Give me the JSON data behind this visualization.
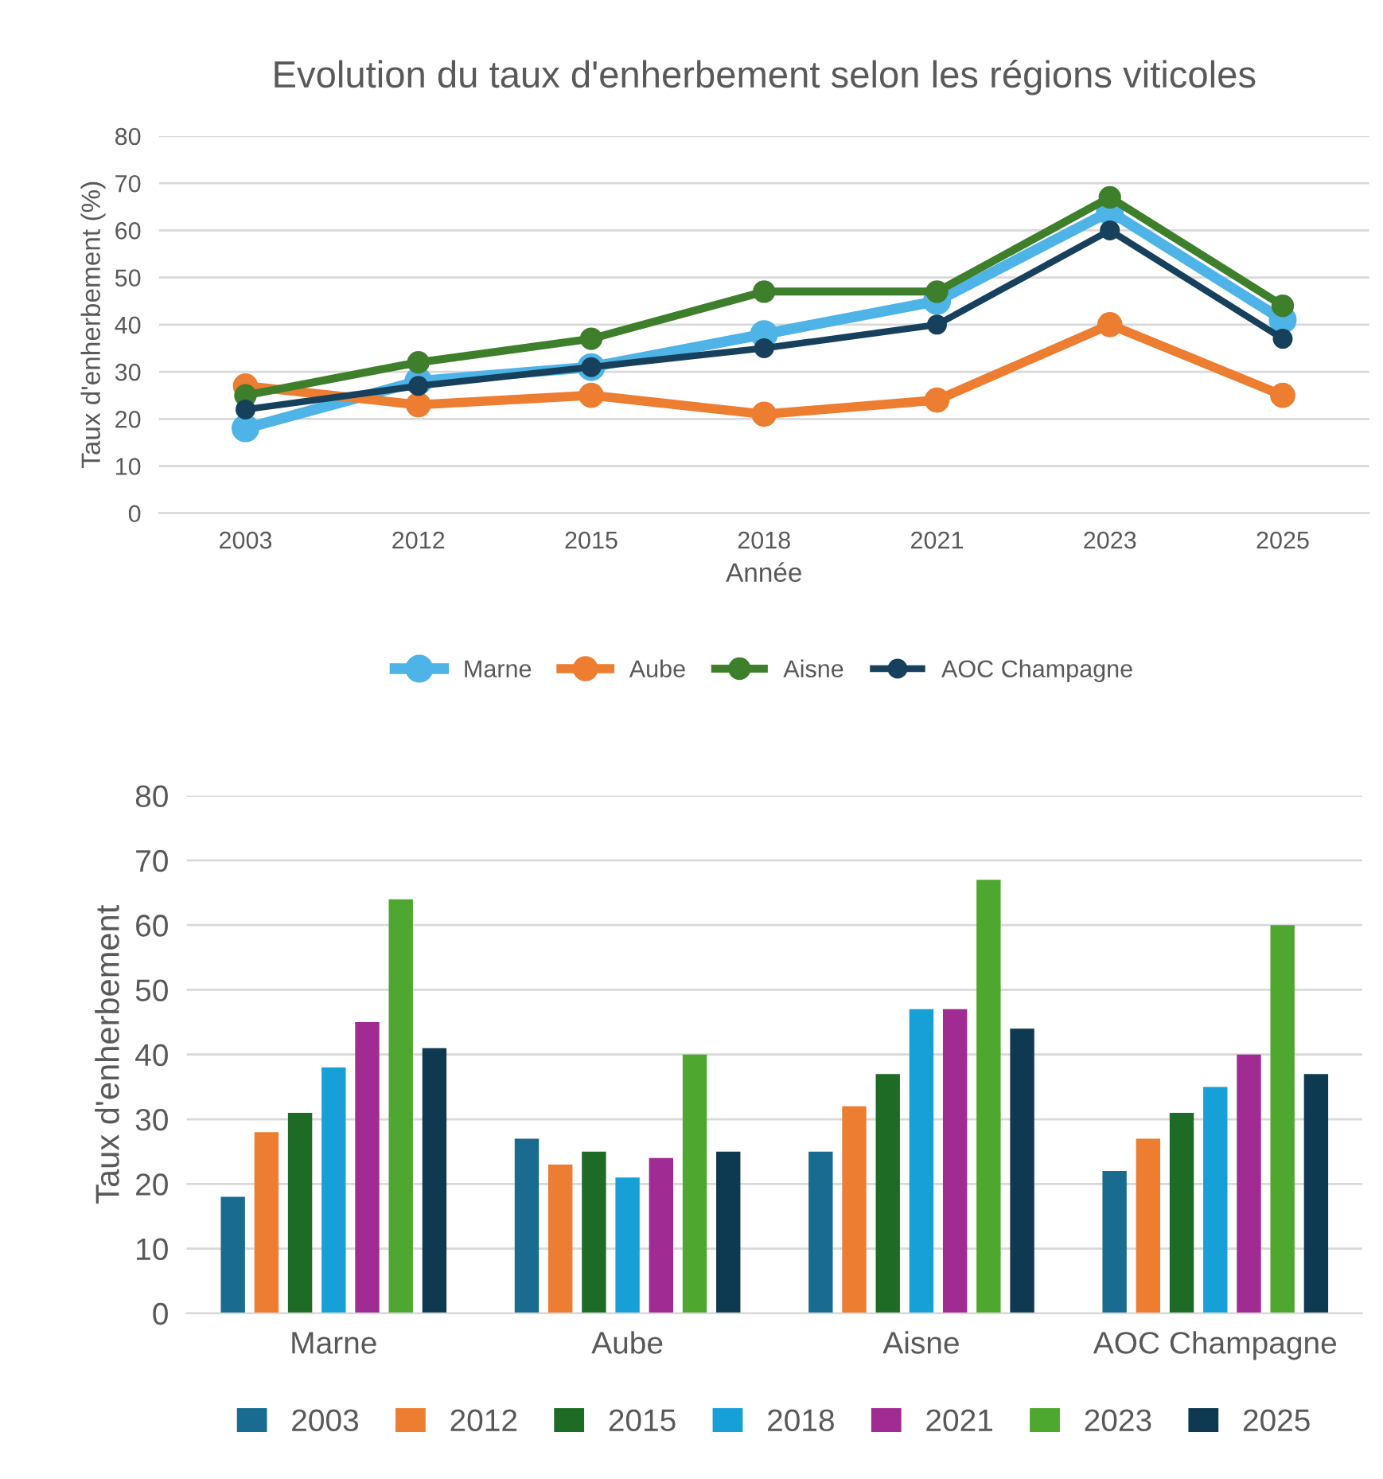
{
  "chart_data": [
    {
      "type": "line",
      "title": "Evolution du taux d'enherbement selon les régions viticoles",
      "xlabel": "Année",
      "ylabel": "Taux d'enherbement (%)",
      "categories": [
        "2003",
        "2012",
        "2015",
        "2018",
        "2021",
        "2023",
        "2025"
      ],
      "series": [
        {
          "name": "Marne",
          "color": "#4eb3e6",
          "values": [
            18,
            28,
            31,
            38,
            45,
            64,
            41
          ]
        },
        {
          "name": "Aube",
          "color": "#ed7d31",
          "values": [
            27,
            23,
            25,
            21,
            24,
            40,
            25
          ]
        },
        {
          "name": "Aisne",
          "color": "#3e7f2b",
          "values": [
            25,
            32,
            37,
            47,
            47,
            67,
            44
          ]
        },
        {
          "name": "AOC Champagne",
          "color": "#16405b",
          "values": [
            22,
            27,
            31,
            35,
            40,
            60,
            37
          ]
        }
      ],
      "ylim": [
        0,
        80
      ],
      "yticks": [
        0,
        10,
        20,
        30,
        40,
        50,
        60,
        70,
        80
      ],
      "grid": "y",
      "legend": "bottom",
      "marker": "circle",
      "line_style": "solid"
    },
    {
      "type": "bar",
      "ylabel": "Taux d'enherbement",
      "categories": [
        "Marne",
        "Aube",
        "Aisne",
        "AOC Champagne"
      ],
      "series": [
        {
          "name": "2003",
          "color": "#196b8f",
          "values": [
            18,
            27,
            25,
            22
          ]
        },
        {
          "name": "2012",
          "color": "#ed7d31",
          "values": [
            28,
            23,
            32,
            27
          ]
        },
        {
          "name": "2015",
          "color": "#1e6b26",
          "values": [
            31,
            25,
            37,
            31
          ]
        },
        {
          "name": "2018",
          "color": "#17a0d8",
          "values": [
            38,
            21,
            47,
            35
          ]
        },
        {
          "name": "2021",
          "color": "#a02b93",
          "values": [
            45,
            24,
            47,
            40
          ]
        },
        {
          "name": "2023",
          "color": "#4ea72e",
          "values": [
            64,
            40,
            67,
            60
          ]
        },
        {
          "name": "2025",
          "color": "#0e3a51",
          "values": [
            41,
            25,
            44,
            37
          ]
        }
      ],
      "ylim": [
        0,
        80
      ],
      "yticks": [
        0,
        10,
        20,
        30,
        40,
        50,
        60,
        70,
        80
      ],
      "grid": "y",
      "legend": "bottom"
    }
  ]
}
